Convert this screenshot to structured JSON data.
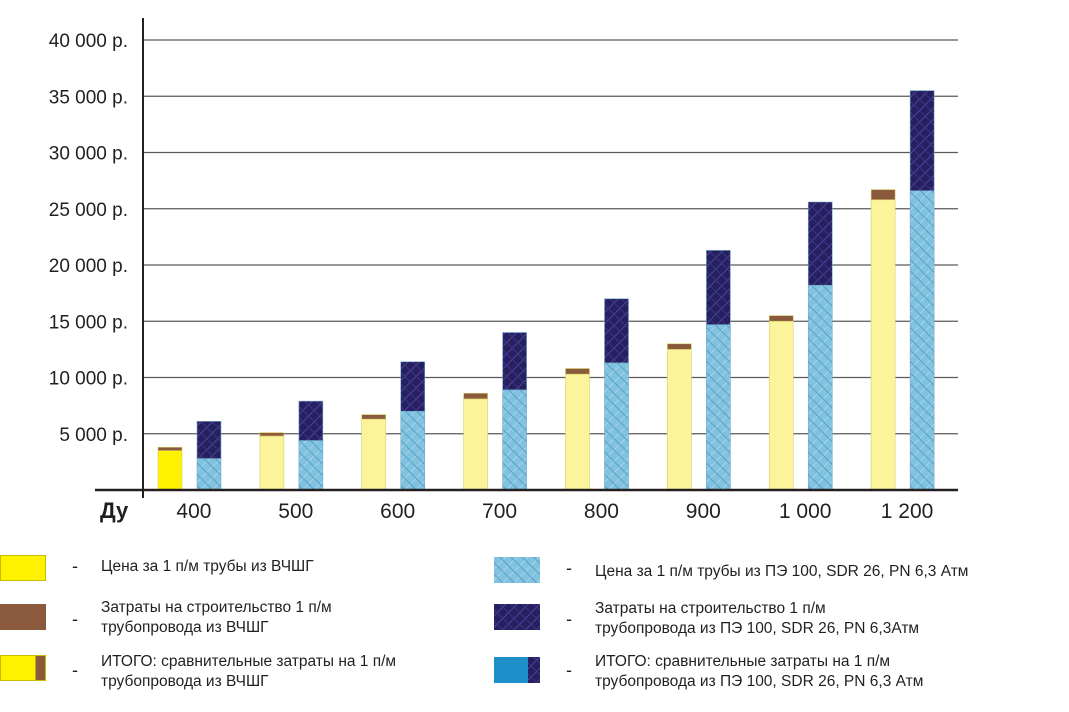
{
  "chart_data": {
    "type": "bar",
    "xlabel": "Ду",
    "categories": [
      "400",
      "500",
      "600",
      "700",
      "800",
      "900",
      "1 000",
      "1 200"
    ],
    "ylim": [
      0,
      40000
    ],
    "yticks": [
      "5 000 р.",
      "10 000 р.",
      "15 000 р.",
      "20 000 р.",
      "25 000 р.",
      "30 000 р.",
      "35 000 р.",
      "40 000 р."
    ],
    "grid": true,
    "stacks": [
      {
        "name": "ВЧШГ",
        "series": [
          {
            "name": "Цена за 1 п/м трубы из ВЧШГ",
            "color": "#fbf49a",
            "values": [
              3500,
              4800,
              6300,
              8100,
              10300,
              12500,
              15000,
              25800
            ]
          },
          {
            "name": "Затраты на строительство 1 п/м трубопровода из ВЧШГ",
            "color": "#8b5a3c",
            "values": [
              300,
              300,
              400,
              500,
              500,
              500,
              500,
              900
            ]
          }
        ]
      },
      {
        "name": "ПЭ 100",
        "series": [
          {
            "name": "Цена за 1 п/м трубы из ПЭ 100, SDR 26, PN 6,3 Атм",
            "color": "#7fc0dd",
            "values": [
              2800,
              4400,
              7000,
              8900,
              11300,
              14700,
              18200,
              26600
            ]
          },
          {
            "name": "Затраты на строительство 1 п/м трубопровода из ПЭ 100, SDR 26, PN 6,3Атм",
            "color": "#2a2466",
            "values": [
              3300,
              3500,
              4400,
              5100,
              5700,
              6600,
              7400,
              8900
            ]
          }
        ]
      }
    ]
  },
  "legend": {
    "dash": "-",
    "items": [
      {
        "label": "Цена за 1 п/м трубы из ВЧШГ"
      },
      {
        "label": "Затраты на строительство 1 п/м\nтрубопровода из ВЧШГ"
      },
      {
        "label": "ИТОГО: сравнительные затраты на 1 п/м\nтрубопровода из ВЧШГ"
      },
      {
        "label": "Цена за 1 п/м трубы из ПЭ 100, SDR 26, PN 6,3 Атм"
      },
      {
        "label": "Затраты на строительство 1 п/м\nтрубопровода из ПЭ 100, SDR 26, PN 6,3Атм"
      },
      {
        "label": "ИТОГО: сравнительные затраты на 1 п/м\nтрубопровода из ПЭ 100, SDR 26, PN 6,3 Атм"
      }
    ]
  }
}
